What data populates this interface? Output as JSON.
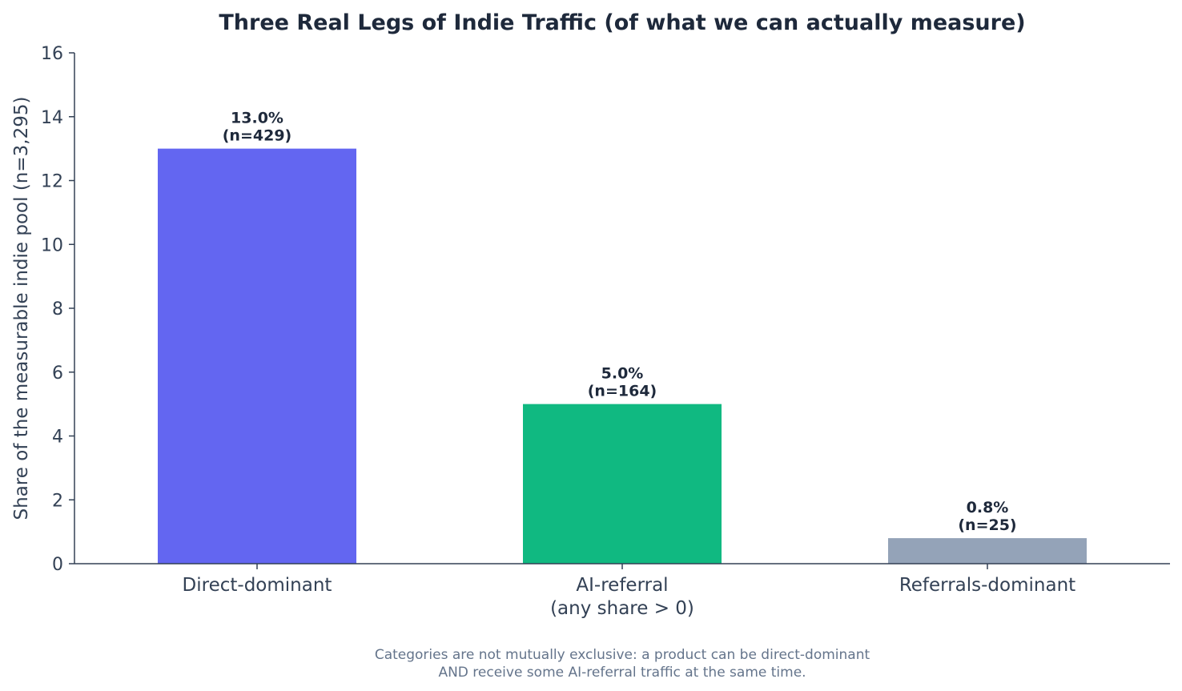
{
  "chart_data": {
    "type": "bar",
    "title": "Three Real Legs of Indie Traffic (of what we can actually measure)",
    "ylabel": "Share of the measurable indie pool (n=3,295)",
    "xlabel": "",
    "ylim": [
      0,
      16
    ],
    "yticks": [
      "0",
      "2",
      "4",
      "6",
      "8",
      "10",
      "12",
      "14",
      "16"
    ],
    "grid": false,
    "categories": [
      [
        "Direct-dominant"
      ],
      [
        "AI-referral",
        "(any share > 0)"
      ],
      [
        "Referrals-dominant"
      ]
    ],
    "values": [
      13.0,
      5.0,
      0.8
    ],
    "data_labels": [
      [
        "13.0%",
        "(n=429)"
      ],
      [
        "5.0%",
        "(n=164)"
      ],
      [
        "0.8%",
        "(n=25)"
      ]
    ],
    "colors": [
      "#6366f1",
      "#10b981",
      "#94a3b8"
    ],
    "annotation": [
      "Categories are not mutually exclusive: a product can be direct-dominant",
      "AND receive some AI-referral traffic at the same time."
    ]
  }
}
